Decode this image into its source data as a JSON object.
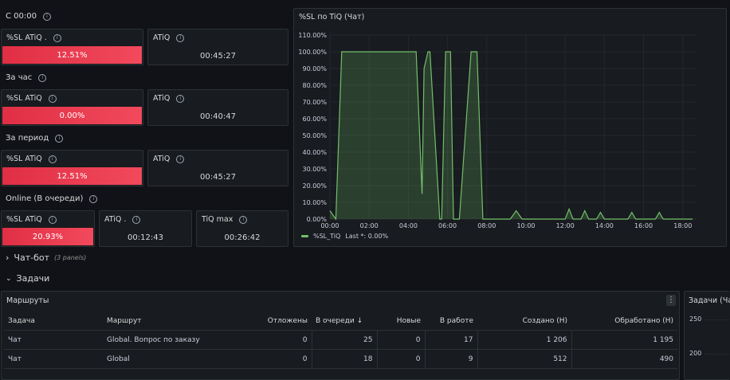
{
  "rows": {
    "since": "С 00:00",
    "hour": "За час",
    "period": "За период",
    "online": "Online (В очереди)"
  },
  "stats": {
    "since_sl_title": "%SL ATiQ .",
    "since_sl_value": "12.51%",
    "since_atiq_title": "ATiQ",
    "since_atiq_value": "00:45:27",
    "hour_sl_title": "%SL ATiQ",
    "hour_sl_value": "0.00%",
    "hour_atiq_title": "ATiQ",
    "hour_atiq_value": "00:40:47",
    "period_sl_title": "%SL ATiQ",
    "period_sl_value": "12.51%",
    "period_atiq_title": "ATiQ",
    "period_atiq_value": "00:45:27",
    "online_sl_title": "%SL ATiQ",
    "online_sl_value": "20.93%",
    "online_atiq_title": "ATiQ .",
    "online_atiq_value": "00:12:43",
    "online_tiq_title": "TiQ max",
    "online_tiq_value": "00:26:42"
  },
  "colors": {
    "stat_red": "#e02f44",
    "line_green": "#73bf69"
  },
  "chart_data": {
    "type": "area",
    "title": "%SL по TiQ (Чат)",
    "x_ticks": [
      "00:00",
      "02:00",
      "04:00",
      "06:00",
      "08:00",
      "10:00",
      "12:00",
      "14:00",
      "16:00",
      "18:00"
    ],
    "y_ticks": [
      "0.00%",
      "10.00%",
      "20.00%",
      "30.00%",
      "40.00%",
      "50.00%",
      "60.00%",
      "70.00%",
      "80.00%",
      "90.00%",
      "100.00%",
      "110.00%"
    ],
    "ylim": [
      0,
      110
    ],
    "xlim_hours": [
      0,
      18.7
    ],
    "legend": "%SL_TiQ",
    "legend_last": "Last *: 0.00%",
    "series": [
      {
        "name": "%SL_TiQ",
        "x": [
          0,
          0.3,
          0.6,
          4.4,
          4.7,
          4.8,
          5.0,
          5.1,
          5.6,
          5.7,
          5.9,
          6.15,
          6.3,
          6.6,
          7.2,
          7.5,
          7.8,
          8.1,
          9.2,
          9.5,
          9.8,
          12.0,
          12.2,
          12.4,
          12.8,
          13.0,
          13.2,
          13.6,
          13.8,
          14.0,
          15.2,
          15.4,
          15.6,
          16.6,
          16.8,
          17.0,
          18.5
        ],
        "y": [
          5,
          0,
          100,
          100,
          15,
          90,
          100,
          100,
          0,
          0,
          100,
          100,
          0,
          0,
          100,
          100,
          0,
          0,
          0,
          5,
          0,
          0,
          6,
          0,
          0,
          5,
          0,
          0,
          4,
          0,
          0,
          4,
          0,
          0,
          4,
          0,
          0
        ]
      }
    ]
  },
  "sections": {
    "chatbot": "Чат-бот",
    "chatbot_note": "(3 panels)",
    "tasks": "Задачи"
  },
  "routes": {
    "title": "Маршруты",
    "menu_icon": "kebab-menu-icon",
    "headers": [
      "Задача",
      "Маршрут",
      "Отложены",
      "В очереди",
      "Новые",
      "В работе",
      "Создано (Н)",
      "Обработано (Н)"
    ],
    "sort_indicator": "↓",
    "rows": [
      [
        "Чат",
        "Global. Вопрос по заказу",
        "0",
        "25",
        "0",
        "17",
        "1 206",
        "1 195"
      ],
      [
        "Чат",
        "Global",
        "0",
        "18",
        "0",
        "9",
        "512",
        "490"
      ]
    ]
  },
  "side_panel": {
    "title": "Задачи (Ча",
    "y_ticks": [
      "250",
      "200"
    ]
  }
}
